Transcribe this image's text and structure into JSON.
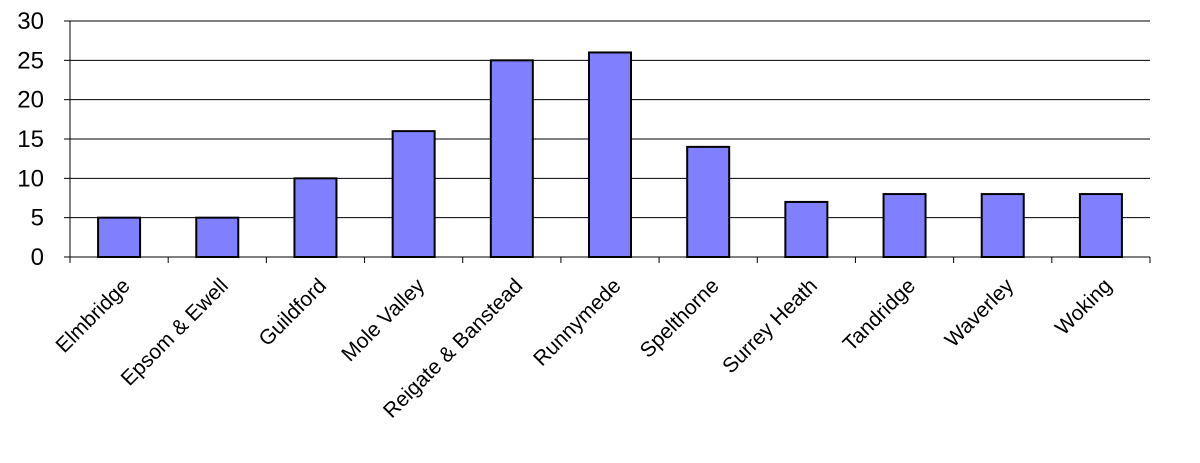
{
  "chart_data": {
    "type": "bar",
    "title": "",
    "xlabel": "",
    "ylabel": "",
    "categories": [
      "Elmbridge",
      "Epsom & Ewell",
      "Guildford",
      "Mole Valley",
      "Reigate & Banstead",
      "Runnymede",
      "Spelthorne",
      "Surrey Heath",
      "Tandridge",
      "Waverley",
      "Woking"
    ],
    "values": [
      5,
      5,
      10,
      16,
      25,
      26,
      14,
      7,
      8,
      8,
      8
    ],
    "ylim": [
      0,
      30
    ],
    "yticks": [
      0,
      5,
      10,
      15,
      20,
      25,
      30
    ],
    "grid": true,
    "legend": "none",
    "bar_color": "#8080ff",
    "bar_edge_color": "#000000",
    "grid_color": "#000000"
  }
}
